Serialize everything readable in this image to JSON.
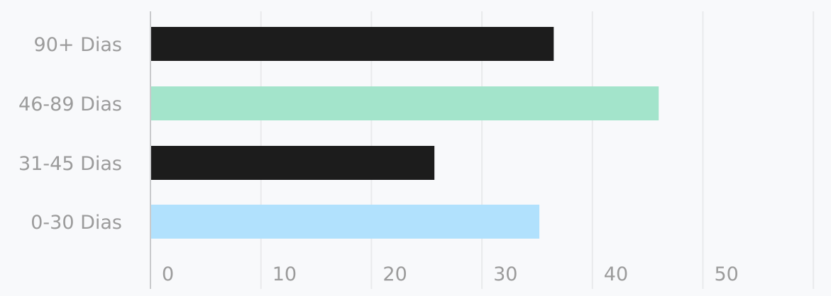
{
  "chart_data": {
    "type": "bar",
    "orientation": "horizontal",
    "categories": [
      "90+ Dias",
      "46-89 Dias",
      "31-45 Dias",
      "0-30 Dias"
    ],
    "values": [
      36.5,
      46,
      25.7,
      35.2
    ],
    "bar_colors": [
      "#1c1c1c",
      "#a3e4cb",
      "#1c1c1c",
      "#b1e1fd"
    ],
    "x_ticks": [
      0,
      10,
      20,
      30,
      40,
      50
    ],
    "xlim": [
      0,
      60
    ],
    "grid": true,
    "legend": "none"
  },
  "colors": {
    "background": "#f8f9fb",
    "gridline": "#e9eaec",
    "axis_line": "#c9cacc",
    "label_text": "#9b9b9b"
  }
}
